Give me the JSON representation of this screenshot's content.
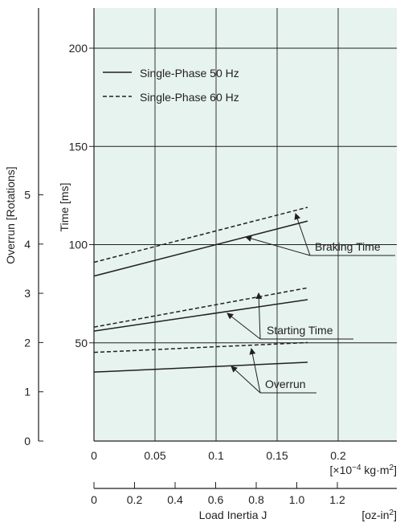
{
  "chart_data": {
    "type": "line",
    "x_unit": "×10⁻⁴ kg·m²",
    "x_ticks": [
      0,
      0.05,
      0.1,
      0.15,
      0.2
    ],
    "x_tick_labels": [
      "0",
      "0.05",
      "0.1",
      "0.15",
      "0.2"
    ],
    "x_unit_label": {
      "prefix": "[×10",
      "exp": "−4",
      "mid": " kg·m",
      "exp2": "2",
      "suffix": "]"
    },
    "x2_ticks": [
      0,
      0.2,
      0.4,
      0.6,
      0.8,
      1.0,
      1.2
    ],
    "x2_tick_labels": [
      "0",
      "0.2",
      "0.4",
      "0.6",
      "0.8",
      "1.0",
      "1.2"
    ],
    "x2_unit_label": {
      "prefix": "[oz-in",
      "exp": "2",
      "suffix": "]"
    },
    "xlabel": "Load Inertia  J",
    "ylabel_time": "Time [ms]",
    "y_time_ticks": [
      50,
      100,
      150,
      200
    ],
    "ylim_time": [
      0,
      225
    ],
    "ylabel_overrun": "Overrun [Rotations]",
    "y_overrun_ticks": [
      0,
      1,
      2,
      3,
      4,
      5
    ],
    "y_overrun_tick_labels": [
      "0",
      "1",
      "2",
      "3",
      "4",
      "5"
    ],
    "legend": [
      {
        "name": "Single-Phase 50 Hz",
        "style": "solid"
      },
      {
        "name": "Single-Phase 60 Hz",
        "style": "dashed"
      }
    ],
    "series": [
      {
        "group": "Braking Time",
        "style": "solid",
        "axis": "time",
        "x": [
          0,
          0.175
        ],
        "y": [
          84,
          112
        ]
      },
      {
        "group": "Braking Time",
        "style": "dashed",
        "axis": "time",
        "x": [
          0,
          0.175
        ],
        "y": [
          91,
          119
        ]
      },
      {
        "group": "Starting Time",
        "style": "solid",
        "axis": "time",
        "x": [
          0,
          0.175
        ],
        "y": [
          56,
          72
        ]
      },
      {
        "group": "Starting Time",
        "style": "dashed",
        "axis": "time",
        "x": [
          0,
          0.175
        ],
        "y": [
          58,
          78
        ]
      },
      {
        "group": "Overrun",
        "style": "solid",
        "axis": "overrun",
        "x": [
          0,
          0.175
        ],
        "y": [
          1.4,
          1.6
        ]
      },
      {
        "group": "Overrun",
        "style": "dashed",
        "axis": "overrun",
        "x": [
          0,
          0.175
        ],
        "y": [
          1.8,
          2.0
        ]
      }
    ],
    "annotations": [
      "Braking Time",
      "Starting Time",
      "Overrun"
    ],
    "colors": {
      "plot_background": "#e6f3ef",
      "line": "#231f20",
      "grid": "#231f20"
    },
    "grid": true,
    "legend_position": "top-left"
  }
}
